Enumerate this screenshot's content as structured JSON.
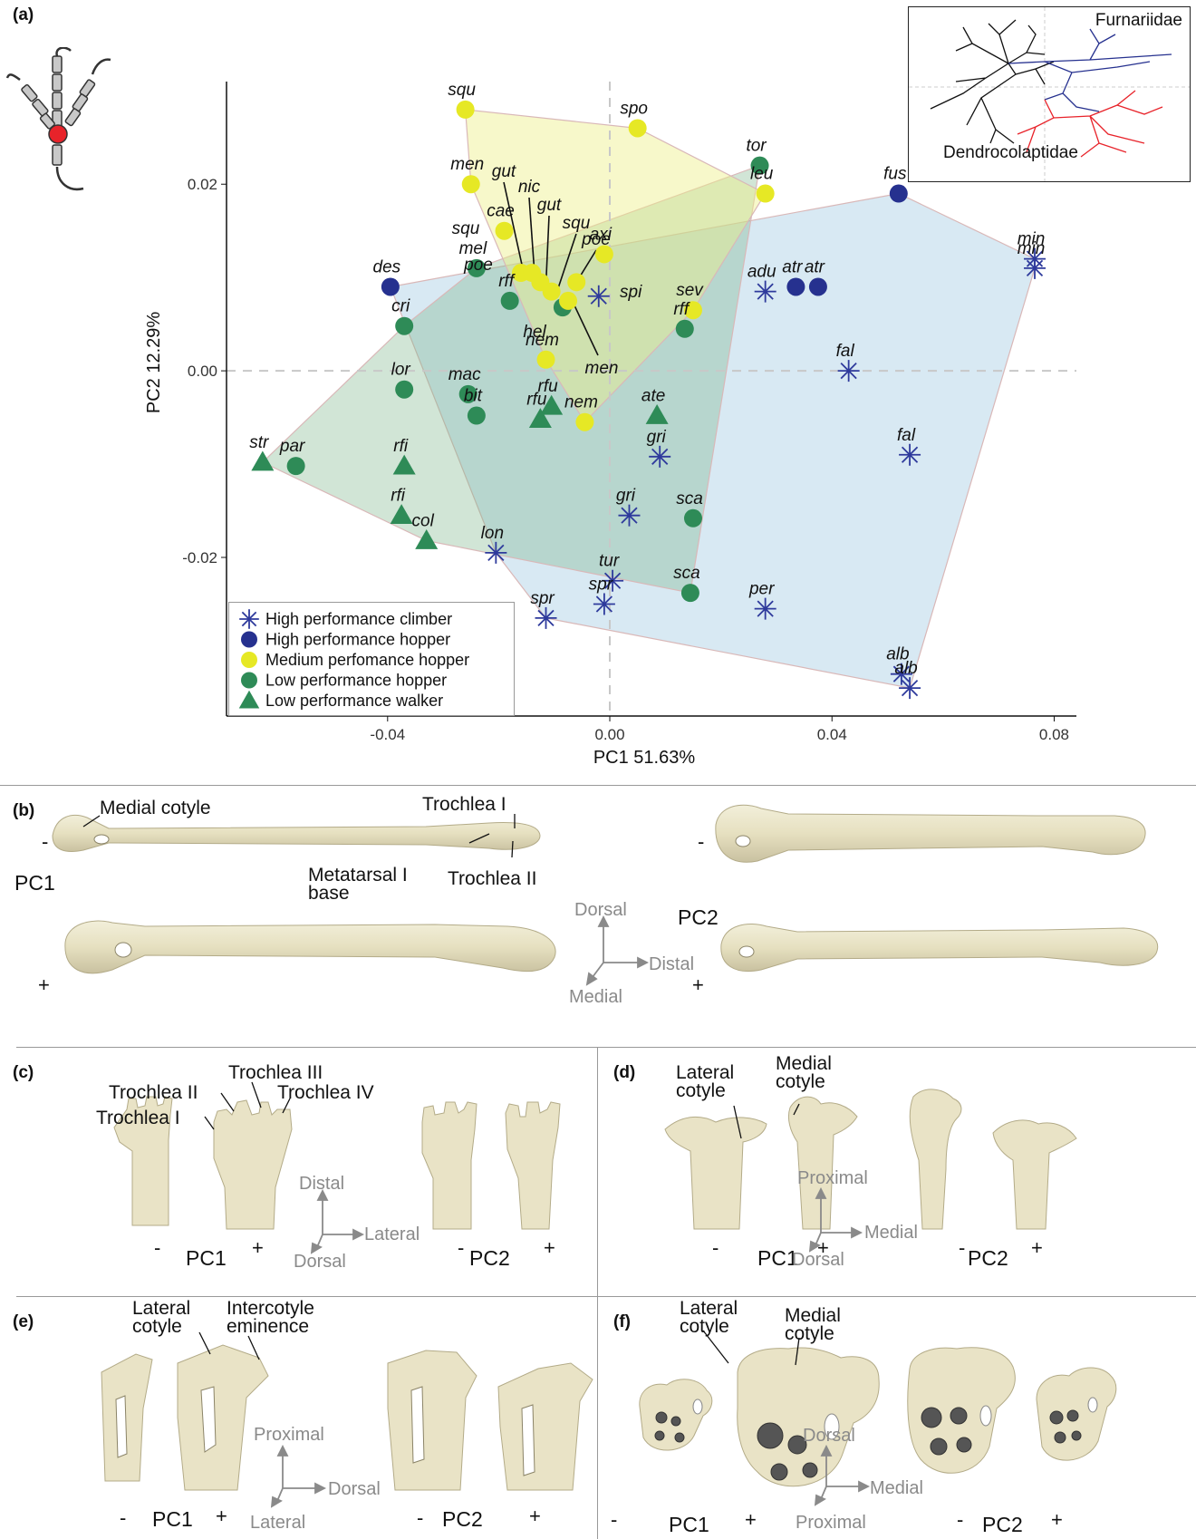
{
  "panels": {
    "a": "(a)",
    "b": "(b)",
    "c": "(c)",
    "d": "(d)",
    "e": "(e)",
    "f": "(f)"
  },
  "chart_data": {
    "type": "scatter",
    "xlabel": "PC1 51.63%",
    "ylabel": "PC2 12.29%",
    "xlim": [
      -0.069,
      0.084
    ],
    "ylim": [
      -0.037,
      0.031
    ],
    "xticks": [
      -0.04,
      0.0,
      0.04,
      0.08
    ],
    "xtick_labels": [
      "-0.04",
      "0.00",
      "0.04",
      "0.08"
    ],
    "yticks": [
      -0.02,
      0.0,
      0.02
    ],
    "ytick_labels": [
      "-0.02",
      "0.00",
      "0.02"
    ],
    "legend_placement": "bottom-left",
    "colors": {
      "climber": "#2e3a9c",
      "high_hopper": "#26318f",
      "medium_hopper": "#e6e825",
      "low_hopper": "#2e8b57",
      "low_walker": "#2e8b57"
    },
    "series": [
      {
        "name": "High performance climber",
        "group": "climber",
        "marker": "asterisk",
        "points": [
          {
            "x": -0.002,
            "y": 0.008
          },
          {
            "x": 0.028,
            "y": 0.0085,
            "label": "adu"
          },
          {
            "x": 0.043,
            "y": 0.0,
            "label": "fal"
          },
          {
            "x": 0.054,
            "y": -0.009,
            "label": "fal"
          },
          {
            "x": 0.009,
            "y": -0.0092,
            "label": "gri"
          },
          {
            "x": 0.0035,
            "y": -0.0155,
            "label": "gri"
          },
          {
            "x": -0.0205,
            "y": -0.0195,
            "label": "lon"
          },
          {
            "x": 0.0005,
            "y": -0.0225,
            "label": "tur"
          },
          {
            "x": -0.0115,
            "y": -0.0265,
            "label": "spr"
          },
          {
            "x": -0.001,
            "y": -0.025,
            "label": "spr"
          },
          {
            "x": 0.028,
            "y": -0.0255,
            "label": "per"
          },
          {
            "x": 0.0765,
            "y": 0.012,
            "label": "min"
          },
          {
            "x": 0.0765,
            "y": 0.011,
            "label": "min"
          },
          {
            "x": 0.0525,
            "y": -0.0325,
            "label": "alb"
          },
          {
            "x": 0.054,
            "y": -0.034,
            "label": "alb"
          }
        ]
      },
      {
        "name": "High performance hopper",
        "group": "high_hopper",
        "marker": "circle",
        "points": [
          {
            "x": -0.0395,
            "y": 0.009,
            "label": "des"
          },
          {
            "x": 0.0335,
            "y": 0.009,
            "label": "atr"
          },
          {
            "x": 0.0375,
            "y": 0.009,
            "label": "atr"
          },
          {
            "x": 0.052,
            "y": 0.019,
            "label": "fus"
          }
        ]
      },
      {
        "name": "Medium perfomance hopper",
        "group": "medium_hopper",
        "marker": "circle",
        "points": [
          {
            "x": -0.026,
            "y": 0.028,
            "label": "squ"
          },
          {
            "x": 0.005,
            "y": 0.026,
            "label": "spo"
          },
          {
            "x": -0.025,
            "y": 0.02,
            "label": "men"
          },
          {
            "x": 0.028,
            "y": 0.019,
            "label": "leu"
          },
          {
            "x": -0.019,
            "y": 0.015,
            "label": "cae"
          },
          {
            "x": -0.001,
            "y": 0.0125,
            "label": "axi"
          },
          {
            "x": -0.016,
            "y": 0.0105
          },
          {
            "x": -0.014,
            "y": 0.0105
          },
          {
            "x": -0.0125,
            "y": 0.0095
          },
          {
            "x": -0.0105,
            "y": 0.0085
          },
          {
            "x": -0.006,
            "y": 0.0095
          },
          {
            "x": -0.0075,
            "y": 0.0075
          },
          {
            "x": 0.015,
            "y": 0.0065,
            "label": "sev"
          },
          {
            "x": -0.0115,
            "y": 0.0012,
            "label": "nem"
          },
          {
            "x": -0.0045,
            "y": -0.0055,
            "label": "nem"
          }
        ]
      },
      {
        "name": "Low performance hopper",
        "group": "low_hopper",
        "marker": "circle",
        "points": [
          {
            "x": 0.027,
            "y": 0.022,
            "label": "tor"
          },
          {
            "x": -0.024,
            "y": 0.011,
            "label": "mel"
          },
          {
            "x": -0.018,
            "y": 0.0075,
            "label": "rff"
          },
          {
            "x": -0.0085,
            "y": 0.0068
          },
          {
            "x": -0.037,
            "y": 0.0048,
            "label": "cri"
          },
          {
            "x": 0.0135,
            "y": 0.0045,
            "label": "rff"
          },
          {
            "x": -0.037,
            "y": -0.002,
            "label": "lor"
          },
          {
            "x": -0.0255,
            "y": -0.0025,
            "label": "mac"
          },
          {
            "x": -0.024,
            "y": -0.0048,
            "label": "bit"
          },
          {
            "x": -0.0565,
            "y": -0.0102,
            "label": "par"
          },
          {
            "x": 0.015,
            "y": -0.0158,
            "label": "sca"
          },
          {
            "x": 0.0145,
            "y": -0.0238,
            "label": "sca"
          }
        ]
      },
      {
        "name": "Low performance walker",
        "group": "low_walker",
        "marker": "triangle",
        "points": [
          {
            "x": -0.0625,
            "y": -0.0098,
            "label": "str"
          },
          {
            "x": -0.037,
            "y": -0.0102,
            "label": "rfi"
          },
          {
            "x": -0.0375,
            "y": -0.0155,
            "label": "rfi"
          },
          {
            "x": -0.033,
            "y": -0.0182,
            "label": "col"
          },
          {
            "x": -0.0105,
            "y": -0.0038,
            "label": "rfu"
          },
          {
            "x": -0.0125,
            "y": -0.0052,
            "label": "rfu"
          },
          {
            "x": 0.0085,
            "y": -0.0048,
            "label": "ate"
          }
        ]
      }
    ],
    "callout_labels": [
      "gut",
      "nic",
      "gut",
      "squ",
      "poe",
      "squ",
      "poe",
      "spi",
      "hel",
      "men"
    ]
  },
  "inset": {
    "title1": "Furnariidae",
    "title2": "Dendrocolaptidae",
    "color1": "#2e3a9c",
    "color2": "#e8232a"
  },
  "panel_b": {
    "medial_cotyle": "Medial cotyle",
    "trochlea_i": "Trochlea I",
    "metatarsal_i": "Metatarsal I",
    "metatarsal_i_2": "base",
    "trochlea_ii": "Trochlea II",
    "pc1": "PC1",
    "pc2": "PC2",
    "minus": "-",
    "plus": "+",
    "axis": {
      "up": "Dorsal",
      "right": "Distal",
      "down": "Medial"
    }
  },
  "panel_c": {
    "trochlea_i": "Trochlea I",
    "trochlea_ii": "Trochlea II",
    "trochlea_iii": "Trochlea III",
    "trochlea_iv": "Trochlea IV",
    "pc1": "PC1",
    "pc2": "PC2",
    "minus": "-",
    "plus": "+",
    "axis": {
      "up": "Distal",
      "right": "Lateral",
      "down": "Dorsal"
    }
  },
  "panel_d": {
    "lateral_1": "Lateral",
    "lateral_2": "cotyle",
    "medial_1": "Medial",
    "medial_2": "cotyle",
    "pc1": "PC1",
    "pc2": "PC2",
    "minus": "-",
    "plus": "+",
    "axis": {
      "up": "Proximal",
      "right": "Medial",
      "down": "Dorsal"
    }
  },
  "panel_e": {
    "lateral_1": "Lateral",
    "lateral_2": "cotyle",
    "inter_1": "Intercotyle",
    "inter_2": "eminence",
    "pc1": "PC1",
    "pc2": "PC2",
    "minus": "-",
    "plus": "+",
    "axis": {
      "up": "Proximal",
      "right": "Dorsal",
      "down": "Lateral"
    }
  },
  "panel_f": {
    "lateral_1": "Lateral",
    "lateral_2": "cotyle",
    "medial_1": "Medial",
    "medial_2": "cotyle",
    "pc1": "PC1",
    "pc2": "PC2",
    "minus": "-",
    "plus": "+",
    "axis": {
      "up": "Dorsal",
      "right": "Medial",
      "down": "Proximal"
    }
  }
}
